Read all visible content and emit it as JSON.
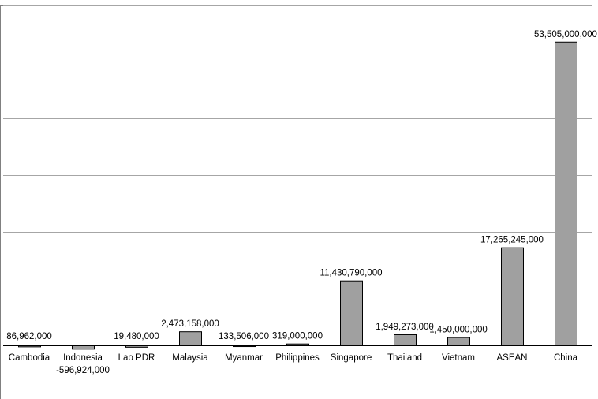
{
  "colors": {
    "bar_fill": "#a0a0a0",
    "bar_stroke": "#000000",
    "grid": "#a6a6a6",
    "frame": "#808080"
  },
  "chart_data": {
    "type": "bar",
    "title": "",
    "xlabel": "",
    "ylabel": "",
    "grid": true,
    "legend": "none",
    "ylim": [
      0,
      60000000000
    ],
    "ytick_step": 10000000000,
    "categories": [
      "Cambodia",
      "Indonesia",
      "Lao PDR",
      "Malaysia",
      "Myanmar",
      "Philippines",
      "Singapore",
      "Thailand",
      "Vietnam",
      "ASEAN",
      "China"
    ],
    "values": [
      86962000,
      -596924000,
      19480000,
      2473158000,
      133506000,
      319000000,
      11430790000,
      1949273000,
      1450000000,
      17265245000,
      53505000000
    ],
    "value_labels": [
      "86,962,000",
      "-596,924,000",
      "19,480,000",
      "2,473,158,000",
      "133,506,000",
      "319,000,000",
      "11,430,790,000",
      "1,949,273,000",
      "1,450,000,000",
      "17,265,245,000",
      "53,505,000,000"
    ]
  }
}
